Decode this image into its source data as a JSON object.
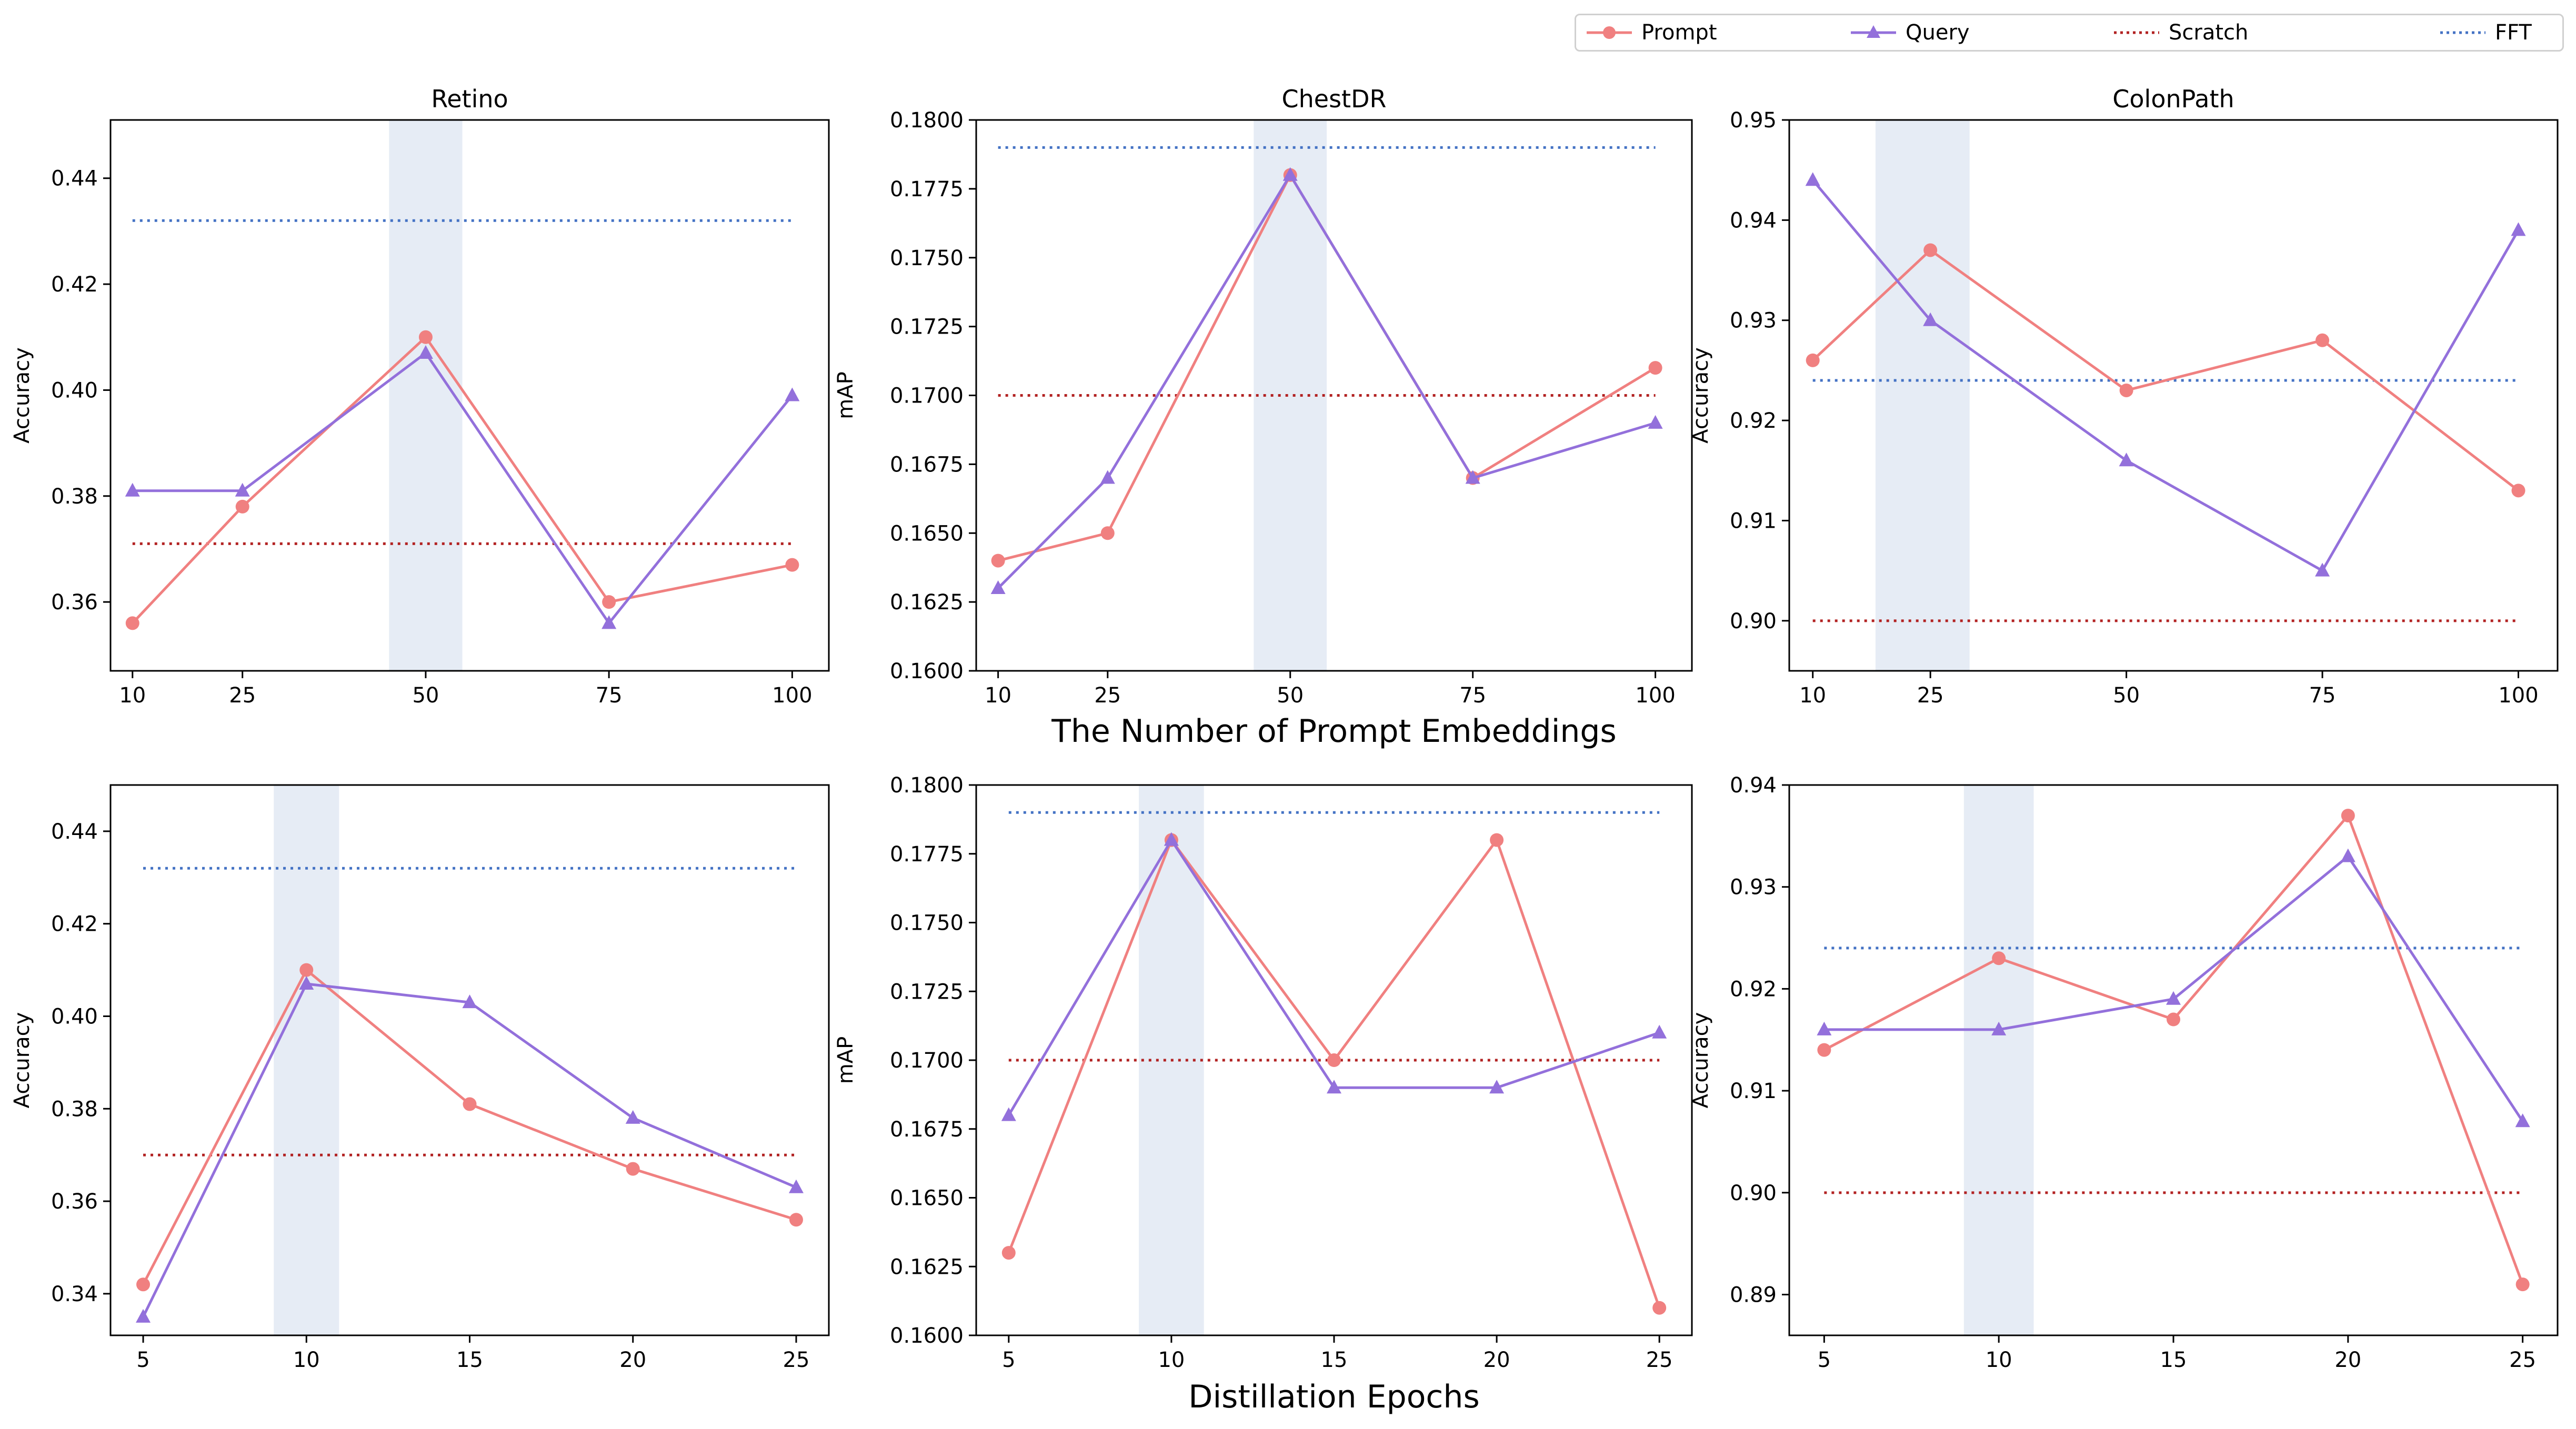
{
  "legend": {
    "items": [
      {
        "label": "Prompt",
        "color": "#F08080",
        "style": "solid",
        "marker": "circle"
      },
      {
        "label": "Query",
        "color": "#9370DB",
        "style": "solid",
        "marker": "triangle"
      },
      {
        "label": "Scratch",
        "color": "#B22222",
        "style": "dotted",
        "marker": "none"
      },
      {
        "label": "FFT",
        "color": "#4472C4",
        "style": "dotted",
        "marker": "none"
      }
    ]
  },
  "row_labels": {
    "top": "The Number of Prompt Embeddings",
    "bottom": "Distillation Epochs"
  },
  "colors": {
    "prompt": "#F08080",
    "query": "#9370DB",
    "scratch": "#B22222",
    "fft": "#4472C4",
    "highlight": "#E6ECF5"
  },
  "chart_data": [
    {
      "type": "line",
      "title": "Retino",
      "ylabel": "Accuracy",
      "x": [
        10,
        25,
        50,
        75,
        100
      ],
      "xticks": [
        "10",
        "25",
        "50",
        "75",
        "100"
      ],
      "xlim": [
        7,
        105
      ],
      "ylim": [
        0.347,
        0.451
      ],
      "yticks": [
        "0.36",
        "0.38",
        "0.40",
        "0.42",
        "0.44"
      ],
      "ytick_values": [
        0.36,
        0.38,
        0.4,
        0.42,
        0.44
      ],
      "highlight": [
        45,
        55
      ],
      "series": [
        {
          "name": "Prompt",
          "values": [
            0.356,
            0.378,
            0.41,
            0.36,
            0.367
          ]
        },
        {
          "name": "Query",
          "values": [
            0.381,
            0.381,
            0.407,
            0.356,
            0.399
          ]
        }
      ],
      "scratch": 0.371,
      "fft": 0.432
    },
    {
      "type": "line",
      "title": "ChestDR",
      "ylabel": "mAP",
      "x": [
        10,
        25,
        50,
        75,
        100
      ],
      "xticks": [
        "10",
        "25",
        "50",
        "75",
        "100"
      ],
      "xlim": [
        7,
        105
      ],
      "ylim": [
        0.16,
        0.18
      ],
      "yticks": [
        "0.1600",
        "0.1625",
        "0.1650",
        "0.1675",
        "0.1700",
        "0.1725",
        "0.1750",
        "0.1775",
        "0.1800"
      ],
      "ytick_values": [
        0.16,
        0.1625,
        0.165,
        0.1675,
        0.17,
        0.1725,
        0.175,
        0.1775,
        0.18
      ],
      "highlight": [
        45,
        55
      ],
      "series": [
        {
          "name": "Prompt",
          "values": [
            0.164,
            0.165,
            0.178,
            0.167,
            0.171
          ]
        },
        {
          "name": "Query",
          "values": [
            0.163,
            0.167,
            0.178,
            0.167,
            0.169
          ]
        }
      ],
      "scratch": 0.17,
      "fft": 0.179
    },
    {
      "type": "line",
      "title": "ColonPath",
      "ylabel": "Accuracy",
      "x": [
        10,
        25,
        50,
        75,
        100
      ],
      "xticks": [
        "10",
        "25",
        "50",
        "75",
        "100"
      ],
      "xlim": [
        7,
        105
      ],
      "ylim": [
        0.895,
        0.95
      ],
      "yticks": [
        "0.90",
        "0.91",
        "0.92",
        "0.93",
        "0.94",
        "0.95"
      ],
      "ytick_values": [
        0.9,
        0.91,
        0.92,
        0.93,
        0.94,
        0.95
      ],
      "highlight": [
        18,
        30
      ],
      "series": [
        {
          "name": "Prompt",
          "values": [
            0.926,
            0.937,
            0.923,
            0.928,
            0.913
          ]
        },
        {
          "name": "Query",
          "values": [
            0.944,
            0.93,
            0.916,
            0.905,
            0.939
          ]
        }
      ],
      "scratch": 0.9,
      "fft": 0.924
    },
    {
      "type": "line",
      "title": "",
      "ylabel": "Accuracy",
      "x": [
        5,
        10,
        15,
        20,
        25
      ],
      "xticks": [
        "5",
        "10",
        "15",
        "20",
        "25"
      ],
      "xlim": [
        4,
        26
      ],
      "ylim": [
        0.331,
        0.45
      ],
      "yticks": [
        "0.34",
        "0.36",
        "0.38",
        "0.40",
        "0.42",
        "0.44"
      ],
      "ytick_values": [
        0.34,
        0.36,
        0.38,
        0.4,
        0.42,
        0.44
      ],
      "highlight": [
        9,
        11
      ],
      "series": [
        {
          "name": "Prompt",
          "values": [
            0.342,
            0.41,
            0.381,
            0.367,
            0.356
          ]
        },
        {
          "name": "Query",
          "values": [
            0.335,
            0.407,
            0.403,
            0.378,
            0.363
          ]
        }
      ],
      "scratch": 0.37,
      "fft": 0.432
    },
    {
      "type": "line",
      "title": "",
      "ylabel": "mAP",
      "x": [
        5,
        10,
        15,
        20,
        25
      ],
      "xticks": [
        "5",
        "10",
        "15",
        "20",
        "25"
      ],
      "xlim": [
        4,
        26
      ],
      "ylim": [
        0.16,
        0.18
      ],
      "yticks": [
        "0.1600",
        "0.1625",
        "0.1650",
        "0.1675",
        "0.1700",
        "0.1725",
        "0.1750",
        "0.1775",
        "0.1800"
      ],
      "ytick_values": [
        0.16,
        0.1625,
        0.165,
        0.1675,
        0.17,
        0.1725,
        0.175,
        0.1775,
        0.18
      ],
      "highlight": [
        9,
        11
      ],
      "series": [
        {
          "name": "Prompt",
          "values": [
            0.163,
            0.178,
            0.17,
            0.178,
            0.161
          ]
        },
        {
          "name": "Query",
          "values": [
            0.168,
            0.178,
            0.169,
            0.169,
            0.171
          ]
        }
      ],
      "scratch": 0.17,
      "fft": 0.179
    },
    {
      "type": "line",
      "title": "",
      "ylabel": "Accuracy",
      "x": [
        5,
        10,
        15,
        20,
        25
      ],
      "xticks": [
        "5",
        "10",
        "15",
        "20",
        "25"
      ],
      "xlim": [
        4,
        26
      ],
      "ylim": [
        0.886,
        0.94
      ],
      "yticks": [
        "0.89",
        "0.90",
        "0.91",
        "0.92",
        "0.93",
        "0.94"
      ],
      "ytick_values": [
        0.89,
        0.9,
        0.91,
        0.92,
        0.93,
        0.94
      ],
      "highlight": [
        9,
        11
      ],
      "series": [
        {
          "name": "Prompt",
          "values": [
            0.914,
            0.923,
            0.917,
            0.937,
            0.891
          ]
        },
        {
          "name": "Query",
          "values": [
            0.916,
            0.916,
            0.919,
            0.933,
            0.907
          ]
        }
      ],
      "scratch": 0.9,
      "fft": 0.924
    }
  ]
}
